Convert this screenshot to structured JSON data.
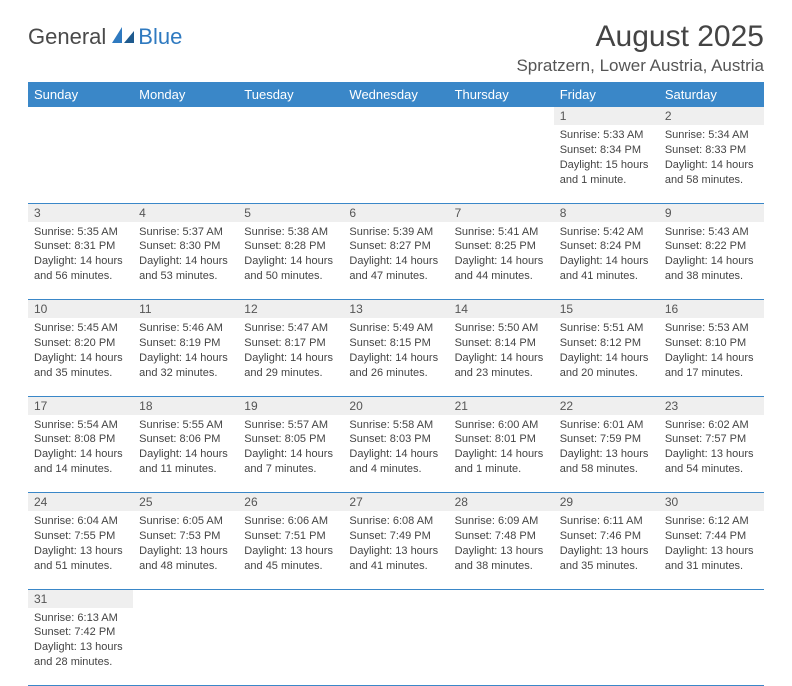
{
  "logo": {
    "general": "General",
    "blue": "Blue"
  },
  "title": "August 2025",
  "location": "Spratzern, Lower Austria, Austria",
  "colors": {
    "header_bg": "#3a87c8",
    "header_text": "#ffffff",
    "daynum_bg": "#efefef",
    "border": "#3a87c8",
    "text": "#444444",
    "logo_blue": "#2f7ac0"
  },
  "day_headers": [
    "Sunday",
    "Monday",
    "Tuesday",
    "Wednesday",
    "Thursday",
    "Friday",
    "Saturday"
  ],
  "weeks": [
    [
      null,
      null,
      null,
      null,
      null,
      {
        "n": "1",
        "sunrise": "Sunrise: 5:33 AM",
        "sunset": "Sunset: 8:34 PM",
        "daylight": "Daylight: 15 hours and 1 minute."
      },
      {
        "n": "2",
        "sunrise": "Sunrise: 5:34 AM",
        "sunset": "Sunset: 8:33 PM",
        "daylight": "Daylight: 14 hours and 58 minutes."
      }
    ],
    [
      {
        "n": "3",
        "sunrise": "Sunrise: 5:35 AM",
        "sunset": "Sunset: 8:31 PM",
        "daylight": "Daylight: 14 hours and 56 minutes."
      },
      {
        "n": "4",
        "sunrise": "Sunrise: 5:37 AM",
        "sunset": "Sunset: 8:30 PM",
        "daylight": "Daylight: 14 hours and 53 minutes."
      },
      {
        "n": "5",
        "sunrise": "Sunrise: 5:38 AM",
        "sunset": "Sunset: 8:28 PM",
        "daylight": "Daylight: 14 hours and 50 minutes."
      },
      {
        "n": "6",
        "sunrise": "Sunrise: 5:39 AM",
        "sunset": "Sunset: 8:27 PM",
        "daylight": "Daylight: 14 hours and 47 minutes."
      },
      {
        "n": "7",
        "sunrise": "Sunrise: 5:41 AM",
        "sunset": "Sunset: 8:25 PM",
        "daylight": "Daylight: 14 hours and 44 minutes."
      },
      {
        "n": "8",
        "sunrise": "Sunrise: 5:42 AM",
        "sunset": "Sunset: 8:24 PM",
        "daylight": "Daylight: 14 hours and 41 minutes."
      },
      {
        "n": "9",
        "sunrise": "Sunrise: 5:43 AM",
        "sunset": "Sunset: 8:22 PM",
        "daylight": "Daylight: 14 hours and 38 minutes."
      }
    ],
    [
      {
        "n": "10",
        "sunrise": "Sunrise: 5:45 AM",
        "sunset": "Sunset: 8:20 PM",
        "daylight": "Daylight: 14 hours and 35 minutes."
      },
      {
        "n": "11",
        "sunrise": "Sunrise: 5:46 AM",
        "sunset": "Sunset: 8:19 PM",
        "daylight": "Daylight: 14 hours and 32 minutes."
      },
      {
        "n": "12",
        "sunrise": "Sunrise: 5:47 AM",
        "sunset": "Sunset: 8:17 PM",
        "daylight": "Daylight: 14 hours and 29 minutes."
      },
      {
        "n": "13",
        "sunrise": "Sunrise: 5:49 AM",
        "sunset": "Sunset: 8:15 PM",
        "daylight": "Daylight: 14 hours and 26 minutes."
      },
      {
        "n": "14",
        "sunrise": "Sunrise: 5:50 AM",
        "sunset": "Sunset: 8:14 PM",
        "daylight": "Daylight: 14 hours and 23 minutes."
      },
      {
        "n": "15",
        "sunrise": "Sunrise: 5:51 AM",
        "sunset": "Sunset: 8:12 PM",
        "daylight": "Daylight: 14 hours and 20 minutes."
      },
      {
        "n": "16",
        "sunrise": "Sunrise: 5:53 AM",
        "sunset": "Sunset: 8:10 PM",
        "daylight": "Daylight: 14 hours and 17 minutes."
      }
    ],
    [
      {
        "n": "17",
        "sunrise": "Sunrise: 5:54 AM",
        "sunset": "Sunset: 8:08 PM",
        "daylight": "Daylight: 14 hours and 14 minutes."
      },
      {
        "n": "18",
        "sunrise": "Sunrise: 5:55 AM",
        "sunset": "Sunset: 8:06 PM",
        "daylight": "Daylight: 14 hours and 11 minutes."
      },
      {
        "n": "19",
        "sunrise": "Sunrise: 5:57 AM",
        "sunset": "Sunset: 8:05 PM",
        "daylight": "Daylight: 14 hours and 7 minutes."
      },
      {
        "n": "20",
        "sunrise": "Sunrise: 5:58 AM",
        "sunset": "Sunset: 8:03 PM",
        "daylight": "Daylight: 14 hours and 4 minutes."
      },
      {
        "n": "21",
        "sunrise": "Sunrise: 6:00 AM",
        "sunset": "Sunset: 8:01 PM",
        "daylight": "Daylight: 14 hours and 1 minute."
      },
      {
        "n": "22",
        "sunrise": "Sunrise: 6:01 AM",
        "sunset": "Sunset: 7:59 PM",
        "daylight": "Daylight: 13 hours and 58 minutes."
      },
      {
        "n": "23",
        "sunrise": "Sunrise: 6:02 AM",
        "sunset": "Sunset: 7:57 PM",
        "daylight": "Daylight: 13 hours and 54 minutes."
      }
    ],
    [
      {
        "n": "24",
        "sunrise": "Sunrise: 6:04 AM",
        "sunset": "Sunset: 7:55 PM",
        "daylight": "Daylight: 13 hours and 51 minutes."
      },
      {
        "n": "25",
        "sunrise": "Sunrise: 6:05 AM",
        "sunset": "Sunset: 7:53 PM",
        "daylight": "Daylight: 13 hours and 48 minutes."
      },
      {
        "n": "26",
        "sunrise": "Sunrise: 6:06 AM",
        "sunset": "Sunset: 7:51 PM",
        "daylight": "Daylight: 13 hours and 45 minutes."
      },
      {
        "n": "27",
        "sunrise": "Sunrise: 6:08 AM",
        "sunset": "Sunset: 7:49 PM",
        "daylight": "Daylight: 13 hours and 41 minutes."
      },
      {
        "n": "28",
        "sunrise": "Sunrise: 6:09 AM",
        "sunset": "Sunset: 7:48 PM",
        "daylight": "Daylight: 13 hours and 38 minutes."
      },
      {
        "n": "29",
        "sunrise": "Sunrise: 6:11 AM",
        "sunset": "Sunset: 7:46 PM",
        "daylight": "Daylight: 13 hours and 35 minutes."
      },
      {
        "n": "30",
        "sunrise": "Sunrise: 6:12 AM",
        "sunset": "Sunset: 7:44 PM",
        "daylight": "Daylight: 13 hours and 31 minutes."
      }
    ],
    [
      {
        "n": "31",
        "sunrise": "Sunrise: 6:13 AM",
        "sunset": "Sunset: 7:42 PM",
        "daylight": "Daylight: 13 hours and 28 minutes."
      },
      null,
      null,
      null,
      null,
      null,
      null
    ]
  ]
}
